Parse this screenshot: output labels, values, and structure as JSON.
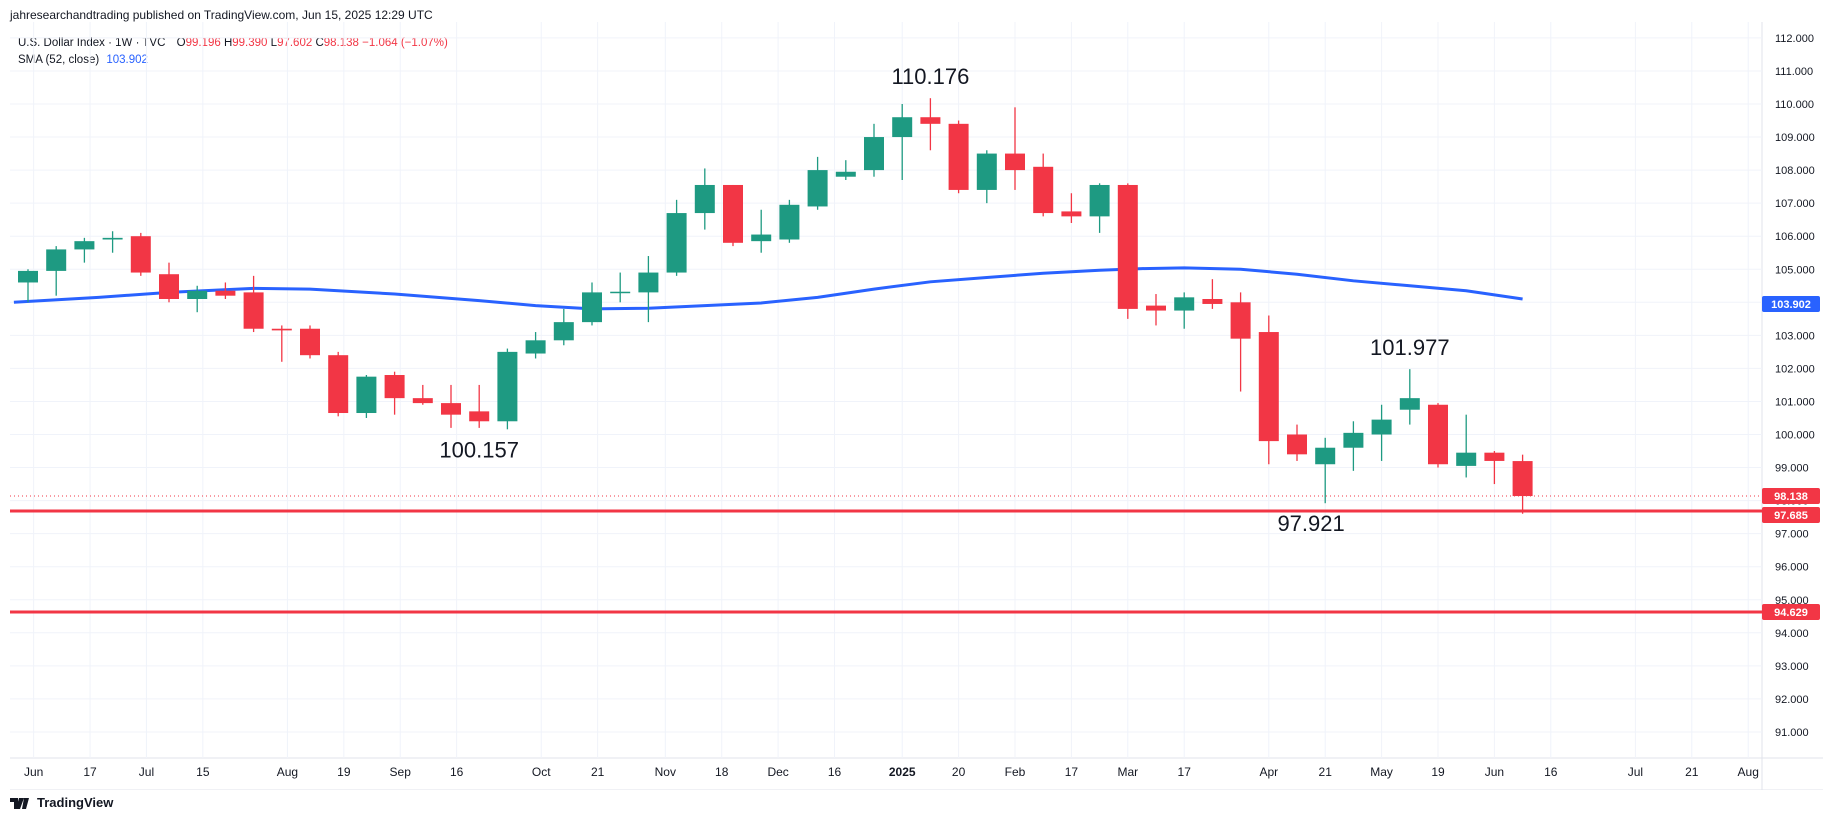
{
  "header": {
    "published": "jahresearchandtrading published on TradingView.com, Jun 15, 2025 12:29 UTC"
  },
  "legend": {
    "symbol": "U.S. Dollar Index · 1W · TVC",
    "o_label": "O",
    "o_value": "99.196",
    "h_label": "H",
    "h_value": "99.390",
    "l_label": "L",
    "l_value": "97.602",
    "c_label": "C",
    "c_value": "98.138",
    "change": "−1.064 (−1.07%)",
    "sma_label": "SMA (52, close)",
    "sma_value": "103.902"
  },
  "footer": {
    "brand": "TradingView"
  },
  "colors": {
    "up": "#26a69a",
    "up_fill": "#1e9a82",
    "down": "#f23645",
    "sma": "#2962ff",
    "hline": "#f23645",
    "grid": "#f0f3fa"
  },
  "chart_data": {
    "type": "candlestick",
    "timeframe": "1W",
    "ylim": [
      90.5,
      112.3
    ],
    "y_ticks": [
      "112.000",
      "111.000",
      "110.000",
      "109.000",
      "108.000",
      "107.000",
      "106.000",
      "105.000",
      "104.000",
      "103.000",
      "102.000",
      "101.000",
      "100.000",
      "99.000",
      "98.000",
      "97.000",
      "96.000",
      "95.000",
      "94.000",
      "93.000",
      "92.000",
      "91.000"
    ],
    "x_ticks": [
      "Jun",
      "17",
      "Jul",
      "15",
      "Aug",
      "19",
      "Sep",
      "16",
      "Oct",
      "21",
      "Nov",
      "18",
      "Dec",
      "16",
      "2025",
      "20",
      "Feb",
      "17",
      "Mar",
      "17",
      "Apr",
      "21",
      "May",
      "19",
      "Jun",
      "16",
      "Jul",
      "21",
      "Aug"
    ],
    "x_tick_slots": [
      0.2,
      2.2,
      4.2,
      6.2,
      9.2,
      11.2,
      13.2,
      15.2,
      18.2,
      20.2,
      22.6,
      24.6,
      26.6,
      28.6,
      31.0,
      33.0,
      35.0,
      37.0,
      39.0,
      41.0,
      44.0,
      46.0,
      48.0,
      50.0,
      52.0,
      54.0,
      57.0,
      59.0,
      61.0
    ],
    "candles": [
      {
        "o": 104.6,
        "h": 105.0,
        "l": 104.0,
        "c": 104.95
      },
      {
        "o": 104.95,
        "h": 105.7,
        "l": 104.2,
        "c": 105.6
      },
      {
        "o": 105.6,
        "h": 105.95,
        "l": 105.2,
        "c": 105.85
      },
      {
        "o": 105.9,
        "h": 106.15,
        "l": 105.5,
        "c": 105.95
      },
      {
        "o": 106.0,
        "h": 106.1,
        "l": 104.8,
        "c": 104.9
      },
      {
        "o": 104.85,
        "h": 105.2,
        "l": 104.0,
        "c": 104.1
      },
      {
        "o": 104.1,
        "h": 104.5,
        "l": 103.7,
        "c": 104.35
      },
      {
        "o": 104.35,
        "h": 104.6,
        "l": 104.1,
        "c": 104.2
      },
      {
        "o": 104.3,
        "h": 104.8,
        "l": 103.1,
        "c": 103.2
      },
      {
        "o": 103.2,
        "h": 103.3,
        "l": 102.2,
        "c": 103.15
      },
      {
        "o": 103.2,
        "h": 103.3,
        "l": 102.3,
        "c": 102.4
      },
      {
        "o": 102.4,
        "h": 102.5,
        "l": 100.55,
        "c": 100.65
      },
      {
        "o": 100.65,
        "h": 101.8,
        "l": 100.5,
        "c": 101.75
      },
      {
        "o": 101.8,
        "h": 101.9,
        "l": 100.6,
        "c": 101.1
      },
      {
        "o": 101.1,
        "h": 101.5,
        "l": 100.9,
        "c": 100.95
      },
      {
        "o": 100.95,
        "h": 101.5,
        "l": 100.2,
        "c": 100.6
      },
      {
        "o": 100.7,
        "h": 101.5,
        "l": 100.2,
        "c": 100.4
      },
      {
        "o": 100.4,
        "h": 102.6,
        "l": 100.157,
        "c": 102.5
      },
      {
        "o": 102.45,
        "h": 103.1,
        "l": 102.3,
        "c": 102.85
      },
      {
        "o": 102.85,
        "h": 103.8,
        "l": 102.7,
        "c": 103.4
      },
      {
        "o": 103.4,
        "h": 104.6,
        "l": 103.3,
        "c": 104.3
      },
      {
        "o": 104.3,
        "h": 104.9,
        "l": 104.0,
        "c": 104.32
      },
      {
        "o": 104.3,
        "h": 105.4,
        "l": 103.4,
        "c": 104.9
      },
      {
        "o": 104.9,
        "h": 107.1,
        "l": 104.8,
        "c": 106.7
      },
      {
        "o": 106.7,
        "h": 108.05,
        "l": 106.2,
        "c": 107.55
      },
      {
        "o": 107.55,
        "h": 107.55,
        "l": 105.7,
        "c": 105.8
      },
      {
        "o": 105.85,
        "h": 106.8,
        "l": 105.5,
        "c": 106.05
      },
      {
        "o": 105.9,
        "h": 107.1,
        "l": 105.8,
        "c": 106.95
      },
      {
        "o": 106.9,
        "h": 108.4,
        "l": 106.8,
        "c": 108.0
      },
      {
        "o": 107.8,
        "h": 108.3,
        "l": 107.7,
        "c": 107.95
      },
      {
        "o": 108.0,
        "h": 109.4,
        "l": 107.8,
        "c": 109.0
      },
      {
        "o": 109.0,
        "h": 110.0,
        "l": 107.7,
        "c": 109.6
      },
      {
        "o": 109.6,
        "h": 110.176,
        "l": 108.6,
        "c": 109.4
      },
      {
        "o": 109.4,
        "h": 109.5,
        "l": 107.3,
        "c": 107.4
      },
      {
        "o": 107.4,
        "h": 108.6,
        "l": 107.0,
        "c": 108.5
      },
      {
        "o": 108.5,
        "h": 109.9,
        "l": 107.4,
        "c": 108.0
      },
      {
        "o": 108.1,
        "h": 108.5,
        "l": 106.6,
        "c": 106.7
      },
      {
        "o": 106.75,
        "h": 107.3,
        "l": 106.4,
        "c": 106.6
      },
      {
        "o": 106.6,
        "h": 107.6,
        "l": 106.1,
        "c": 107.55
      },
      {
        "o": 107.55,
        "h": 107.6,
        "l": 103.5,
        "c": 103.8
      },
      {
        "o": 103.9,
        "h": 104.25,
        "l": 103.3,
        "c": 103.75
      },
      {
        "o": 103.75,
        "h": 104.3,
        "l": 103.2,
        "c": 104.15
      },
      {
        "o": 104.1,
        "h": 104.7,
        "l": 103.8,
        "c": 103.95
      },
      {
        "o": 104.0,
        "h": 104.3,
        "l": 101.3,
        "c": 102.9
      },
      {
        "o": 103.1,
        "h": 103.6,
        "l": 99.1,
        "c": 99.8
      },
      {
        "o": 100.0,
        "h": 100.3,
        "l": 99.2,
        "c": 99.4
      },
      {
        "o": 99.1,
        "h": 99.9,
        "l": 97.921,
        "c": 99.6
      },
      {
        "o": 99.6,
        "h": 100.4,
        "l": 98.9,
        "c": 100.05
      },
      {
        "o": 100.0,
        "h": 100.9,
        "l": 99.2,
        "c": 100.45
      },
      {
        "o": 100.75,
        "h": 101.977,
        "l": 100.3,
        "c": 101.1
      },
      {
        "o": 100.9,
        "h": 100.95,
        "l": 99.0,
        "c": 99.1
      },
      {
        "o": 99.05,
        "h": 100.6,
        "l": 98.7,
        "c": 99.45
      },
      {
        "o": 99.45,
        "h": 99.5,
        "l": 98.5,
        "c": 99.2
      },
      {
        "o": 99.196,
        "h": 99.39,
        "l": 97.602,
        "c": 98.138
      }
    ],
    "sma": {
      "name": "SMA (52, close)",
      "points": [
        [
          -0.5,
          104.0
        ],
        [
          2.5,
          104.15
        ],
        [
          5,
          104.3
        ],
        [
          8,
          104.42
        ],
        [
          10,
          104.4
        ],
        [
          13,
          104.25
        ],
        [
          16,
          104.05
        ],
        [
          18,
          103.9
        ],
        [
          20,
          103.8
        ],
        [
          22,
          103.82
        ],
        [
          24,
          103.9
        ],
        [
          26,
          103.98
        ],
        [
          28,
          104.15
        ],
        [
          30,
          104.4
        ],
        [
          32,
          104.62
        ],
        [
          34,
          104.75
        ],
        [
          36,
          104.88
        ],
        [
          38,
          104.97
        ],
        [
          39.5,
          105.02
        ],
        [
          41,
          105.04
        ],
        [
          43,
          105.0
        ],
        [
          45,
          104.85
        ],
        [
          47,
          104.65
        ],
        [
          49,
          104.5
        ],
        [
          51,
          104.35
        ],
        [
          53,
          104.1
        ]
      ]
    },
    "hlines": [
      {
        "value": 98.138,
        "label": "98.138",
        "style": "dotted"
      },
      {
        "value": 97.685,
        "label": "97.685",
        "style": "solid"
      },
      {
        "value": 94.629,
        "label": "94.629",
        "style": "solid"
      }
    ],
    "sma_last_label": "103.902",
    "annotations": [
      {
        "text": "110.176",
        "slot": 32.0,
        "value": 110.176,
        "place": "above"
      },
      {
        "text": "100.157",
        "slot": 16.0,
        "value": 100.157,
        "place": "below"
      },
      {
        "text": "101.977",
        "slot": 49.0,
        "value": 101.977,
        "place": "above"
      },
      {
        "text": "97.921",
        "slot": 45.5,
        "value": 97.921,
        "place": "below"
      }
    ]
  }
}
